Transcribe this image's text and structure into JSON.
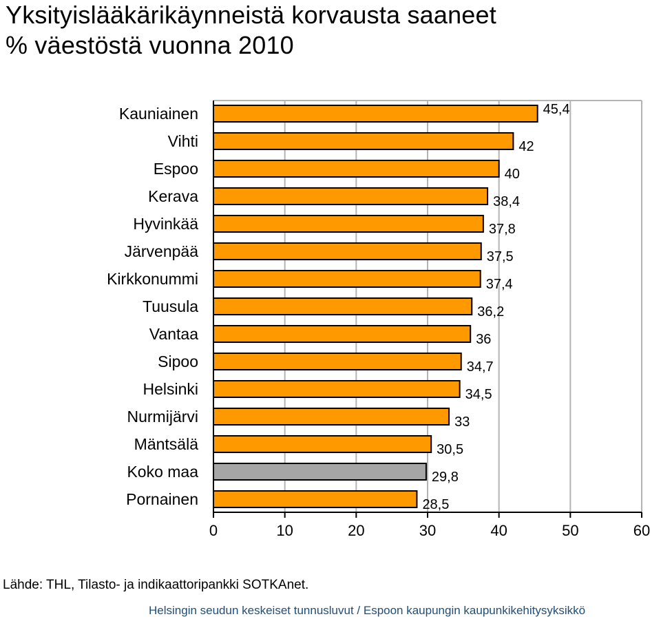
{
  "title_line1": "Yksityislääkärikäynneistä korvausta saaneet",
  "title_line2": "% väestöstä vuonna 2010",
  "source": "Lähde: THL, Tilasto- ja indikaattoripankki SOTKAnet.",
  "footer": "Helsingin seudun keskeiset tunnusluvut / Espoon kaupungin kaupunkikehitysyksikkö",
  "colors": {
    "bar": "#ff9900",
    "bar_highlight": "#a6a6a6",
    "bar_outline": "#000000",
    "grid": "#b3b3b3"
  },
  "chart_data": {
    "type": "bar",
    "orientation": "horizontal",
    "categories": [
      "Kauniainen",
      "Vihti",
      "Espoo",
      "Kerava",
      "Hyvinkää",
      "Järvenpää",
      "Kirkkonummi",
      "Tuusula",
      "Vantaa",
      "Sipoo",
      "Helsinki",
      "Nurmijärvi",
      "Mäntsälä",
      "Koko maa",
      "Pornainen"
    ],
    "values": [
      45.4,
      42,
      40,
      38.4,
      37.8,
      37.5,
      37.4,
      36.2,
      36,
      34.7,
      34.5,
      33,
      30.5,
      29.8,
      28.5
    ],
    "value_labels": [
      "45,4",
      "42",
      "40",
      "38,4",
      "37,8",
      "37,5",
      "37,4",
      "36,2",
      "36",
      "34,7",
      "34,5",
      "33",
      "30,5",
      "29,8",
      "28,5"
    ],
    "highlight": "Koko maa",
    "xlim": [
      0,
      60
    ],
    "xticks": [
      "0",
      "10",
      "20",
      "30",
      "40",
      "50",
      "60"
    ],
    "grid": true
  }
}
